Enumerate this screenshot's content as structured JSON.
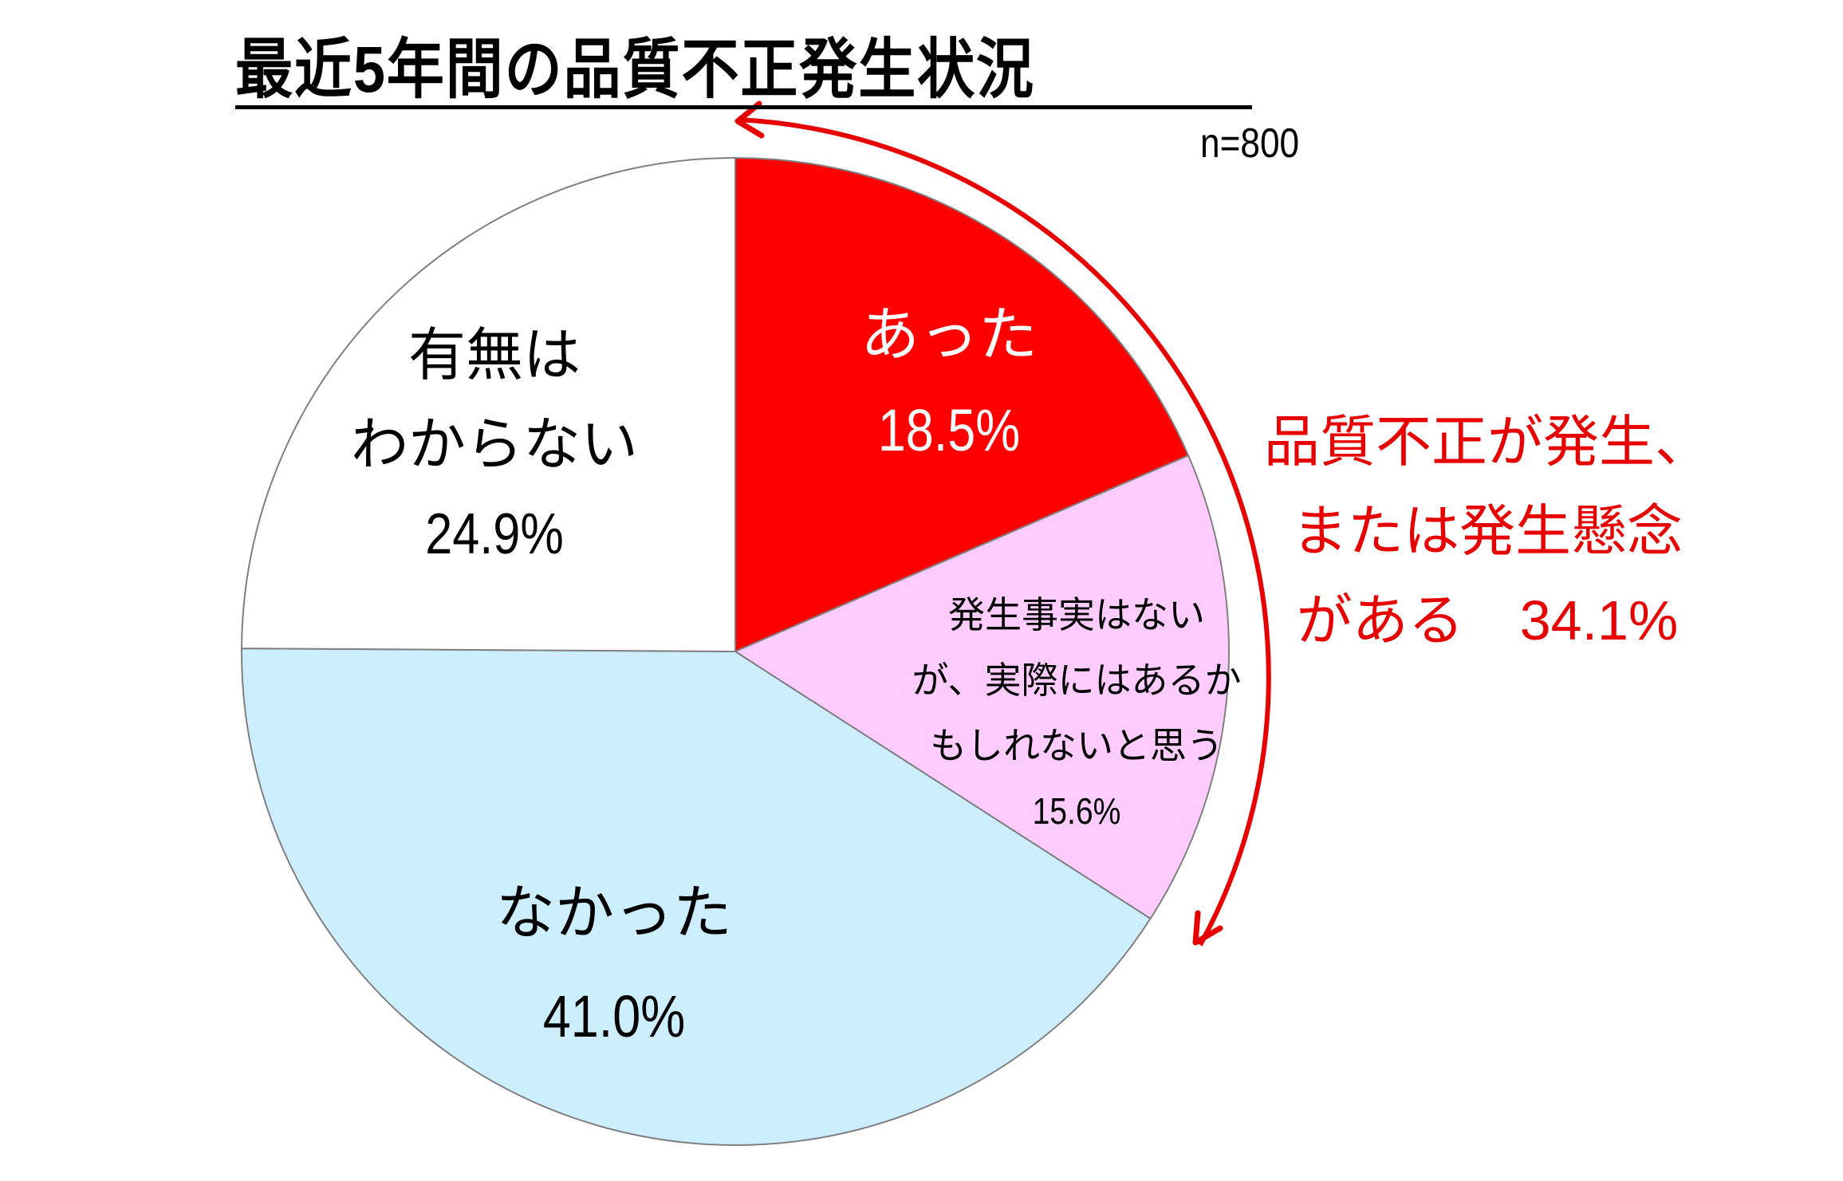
{
  "chart_data": {
    "type": "pie",
    "title": "最近5年間の品質不正発生状況",
    "sample_size": "n=800",
    "start_angle": "12 o'clock, clockwise",
    "slices": [
      {
        "label": "あった",
        "value": 18.5,
        "value_label": "18.5%",
        "color": "#ff0000",
        "text_color": "#ffffff"
      },
      {
        "label": "発生事実はないが、実際にはあるかもしれないと思う",
        "value": 15.6,
        "value_label": "15.6%",
        "color": "#ffccff",
        "text_color": "#000000"
      },
      {
        "label": "なかった",
        "value": 41.0,
        "value_label": "41.0%",
        "color": "#cceeff",
        "text_color": "#000000"
      },
      {
        "label": "有無はわからない",
        "value": 24.9,
        "value_label": "24.9%",
        "color": "#ffffff",
        "text_color": "#000000"
      }
    ],
    "annotation": {
      "text": "品質不正が発生、または発生懸念がある",
      "value": 34.1,
      "value_label": "34.1%",
      "color": "#e60000",
      "spans": [
        "あった",
        "発生事実はないが、実際にはあるかもしれないと思う"
      ]
    }
  },
  "title": "最近5年間の品質不正発生状況",
  "n_label": "n=800",
  "labels": {
    "red": {
      "lines": [
        "あった"
      ],
      "pct": "18.5%"
    },
    "pink": {
      "lines": [
        "発生事実はない",
        "が、実際にはあるか",
        "もしれないと思う"
      ],
      "pct": "15.6%"
    },
    "blue": {
      "lines": [
        "なかった"
      ],
      "pct": "41.0%"
    },
    "white": {
      "lines": [
        "有無は",
        "わからない"
      ],
      "pct": "24.9%"
    }
  },
  "callout": {
    "lines": [
      "品質不正が発生、",
      "または発生懸念",
      "がある　34.1%"
    ]
  }
}
